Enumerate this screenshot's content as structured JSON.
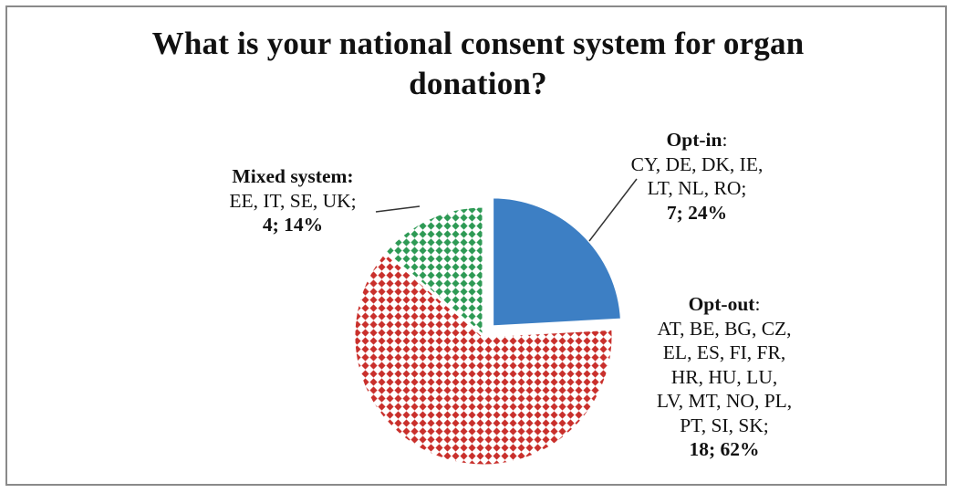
{
  "chart_data": {
    "type": "pie",
    "title": "What is your national consent system for organ donation?",
    "title_lines": [
      "What is your national consent system for organ",
      "donation?"
    ],
    "slices": [
      {
        "name": "Opt-in",
        "heading": "Opt-in",
        "sep": ":",
        "countries": "CY, DE, DK, IE, LT, NL, RO;",
        "country_lines": [
          "CY, DE, DK, IE,",
          "LT, NL, RO;"
        ],
        "value": 7,
        "percent": 24,
        "value_text": "7; 24%",
        "color": "#3d7fc4",
        "pattern": "solid",
        "exploded": true
      },
      {
        "name": "Opt-out",
        "heading": "Opt-out",
        "sep": ":",
        "countries": "AT, BE, BG, CZ, EL, ES, FI, FR, HR, HU, LU, LV, MT, NO, PL, PT, SI, SK;",
        "country_lines": [
          "AT, BE, BG, CZ,",
          "EL, ES, FI, FR,",
          "HR, HU, LU,",
          "LV, MT, NO, PL,",
          "PT, SI, SK;"
        ],
        "value": 18,
        "percent": 62,
        "value_text": "18; 62%",
        "color": "#c9302c",
        "pattern": "diamond-dots",
        "exploded": false
      },
      {
        "name": "Mixed system",
        "heading": "Mixed system:",
        "sep": "",
        "countries": "EE, IT, SE, UK;",
        "country_lines": [
          "EE, IT, SE, UK;"
        ],
        "value": 4,
        "percent": 14,
        "value_text": "4; 14%",
        "color": "#2e9a55",
        "pattern": "diamond-dots",
        "exploded": false
      }
    ],
    "legend": "none",
    "data_labels": "outside with leader lines"
  }
}
